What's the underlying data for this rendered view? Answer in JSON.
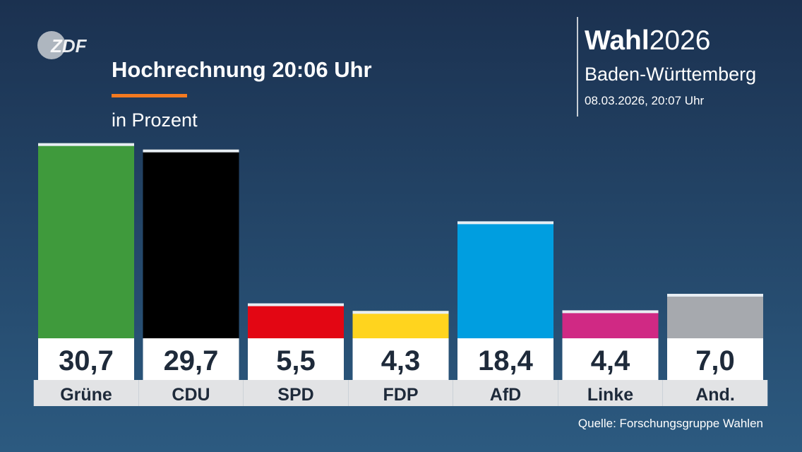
{
  "chart_data": {
    "type": "bar",
    "logo": "ZDF",
    "title": "Hochrechnung 20:06 Uhr",
    "subtitle": "in Prozent",
    "brand": {
      "bold": "Wahl",
      "light": "2026"
    },
    "region": "Baden-Württemberg",
    "timestamp": "08.03.2026, 20:07 Uhr",
    "source": "Quelle: Forschungsgruppe Wahlen",
    "categories": [
      "Grüne",
      "CDU",
      "SPD",
      "FDP",
      "AfD",
      "Linke",
      "And."
    ],
    "values": [
      30.7,
      29.7,
      5.5,
      4.3,
      18.4,
      4.4,
      7.0
    ],
    "value_labels": [
      "30,7",
      "29,7",
      "5,5",
      "4,3",
      "18,4",
      "4,4",
      "7,0"
    ],
    "colors": [
      "#3f9a3c",
      "#000000",
      "#e30613",
      "#ffd41e",
      "#009ee0",
      "#d02984",
      "#a6a9ae"
    ]
  }
}
